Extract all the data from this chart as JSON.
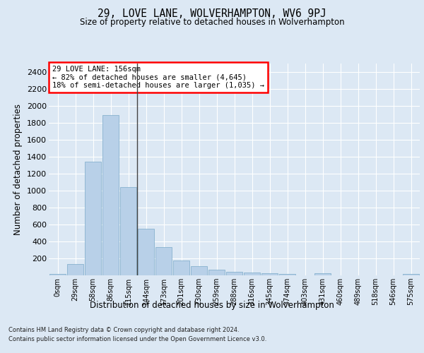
{
  "title": "29, LOVE LANE, WOLVERHAMPTON, WV6 9PJ",
  "subtitle": "Size of property relative to detached houses in Wolverhampton",
  "xlabel": "Distribution of detached houses by size in Wolverhampton",
  "ylabel": "Number of detached properties",
  "categories": [
    "0sqm",
    "29sqm",
    "58sqm",
    "86sqm",
    "115sqm",
    "144sqm",
    "173sqm",
    "201sqm",
    "230sqm",
    "259sqm",
    "288sqm",
    "316sqm",
    "345sqm",
    "374sqm",
    "403sqm",
    "431sqm",
    "460sqm",
    "489sqm",
    "518sqm",
    "546sqm",
    "575sqm"
  ],
  "values": [
    15,
    130,
    1340,
    1890,
    1045,
    550,
    335,
    175,
    110,
    65,
    40,
    30,
    27,
    20,
    0,
    25,
    0,
    0,
    0,
    0,
    15
  ],
  "bar_color": "#b8d0e8",
  "bar_edge_color": "#7aaac8",
  "annotation_line1": "29 LOVE LANE: 156sqm",
  "annotation_line2": "← 82% of detached houses are smaller (4,645)",
  "annotation_line3": "18% of semi-detached houses are larger (1,035) →",
  "vline_bar_index": 4.5,
  "ylim": [
    0,
    2500
  ],
  "yticks": [
    0,
    200,
    400,
    600,
    800,
    1000,
    1200,
    1400,
    1600,
    1800,
    2000,
    2200,
    2400
  ],
  "background_color": "#dce8f4",
  "plot_bg_color": "#dce8f4",
  "grid_color": "#ffffff",
  "footer_line1": "Contains HM Land Registry data © Crown copyright and database right 2024.",
  "footer_line2": "Contains public sector information licensed under the Open Government Licence v3.0."
}
